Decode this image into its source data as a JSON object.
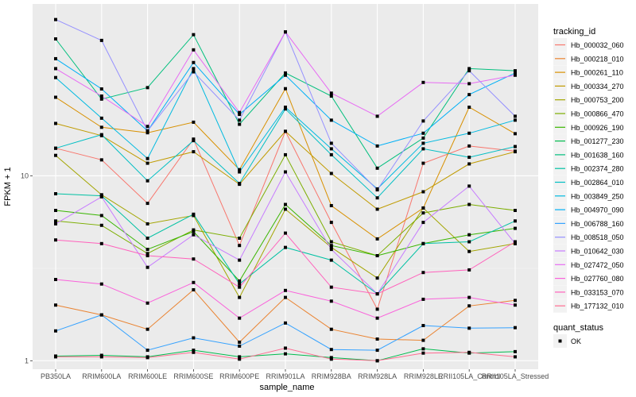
{
  "chart_data": {
    "type": "line",
    "title": "",
    "xlabel": "sample_name",
    "ylabel": "FPKM + 1",
    "yscale": "log10",
    "ylim": [
      0.9,
      85
    ],
    "yticks": [
      1,
      10
    ],
    "ytick_labels": [
      "1",
      "10"
    ],
    "grid": true,
    "legend_position": "right",
    "categories": [
      "PB350LA",
      "RRIM600LA",
      "RRIM600LE",
      "RRIM600SE",
      "RRIM600PE",
      "RRIM901LA",
      "RRIM928BA",
      "RRIM928LA",
      "RRIM928LE",
      "RRII105LA_Control",
      "RRII105LA_Stressed"
    ],
    "color_legend_title": "tracking_id",
    "shape_legend_title": "quant_status",
    "shape_legend_entries": [
      {
        "label": "OK",
        "shape": "square"
      }
    ],
    "series": [
      {
        "name": "Hb_000032_060",
        "color": "#F8766D",
        "values": [
          14.1,
          12.2,
          7.1,
          15.8,
          4.2,
          17.4,
          5.6,
          1.9,
          11.7,
          14.5,
          13.6
        ]
      },
      {
        "name": "Hb_000218_010",
        "color": "#EA8331",
        "values": [
          2.0,
          1.77,
          1.48,
          2.42,
          1.26,
          2.2,
          1.48,
          1.31,
          1.29,
          1.98,
          2.12
        ]
      },
      {
        "name": "Hb_000261_110",
        "color": "#D89000",
        "values": [
          26.6,
          18.3,
          17.1,
          19.5,
          10.8,
          29.6,
          6.9,
          4.56,
          6.7,
          23.5,
          16.9
        ]
      },
      {
        "name": "Hb_000334_270",
        "color": "#C09B00",
        "values": [
          19.2,
          16.5,
          11.7,
          13.5,
          9.0,
          17.4,
          10.3,
          6.6,
          8.2,
          11.6,
          13.5
        ]
      },
      {
        "name": "Hb_000753_200",
        "color": "#A3A500",
        "values": [
          12.9,
          7.9,
          5.5,
          6.1,
          2.2,
          6.6,
          4.1,
          2.8,
          6.7,
          3.9,
          4.3
        ]
      },
      {
        "name": "Hb_000866_470",
        "color": "#7CAE00",
        "values": [
          5.7,
          5.4,
          3.8,
          5.1,
          4.6,
          13.0,
          4.4,
          3.7,
          6.3,
          7.0,
          6.5
        ]
      },
      {
        "name": "Hb_000926_190",
        "color": "#39B600",
        "values": [
          6.5,
          6.1,
          4.0,
          5.0,
          2.7,
          7.0,
          4.2,
          3.7,
          4.3,
          4.8,
          5.2
        ]
      },
      {
        "name": "Hb_001277_230",
        "color": "#00BB4E",
        "values": [
          1.06,
          1.07,
          1.05,
          1.14,
          1.05,
          1.09,
          1.04,
          1.0,
          1.16,
          1.1,
          1.12
        ]
      },
      {
        "name": "Hb_001638_160",
        "color": "#00BF7D",
        "values": [
          55.0,
          26.0,
          30.0,
          58.0,
          19.0,
          36.0,
          27.0,
          11.0,
          16.0,
          38.0,
          37.0
        ]
      },
      {
        "name": "Hb_002374_280",
        "color": "#00C1A3",
        "values": [
          8.0,
          7.8,
          4.6,
          6.2,
          2.6,
          4.1,
          3.5,
          2.3,
          4.3,
          4.4,
          5.7
        ]
      },
      {
        "name": "Hb_002864_010",
        "color": "#00BFC4",
        "values": [
          14.1,
          16.7,
          9.4,
          15.5,
          9.1,
          23.0,
          13.0,
          7.6,
          14.0,
          12.6,
          14.4
        ]
      },
      {
        "name": "Hb_003849_250",
        "color": "#00BAE0",
        "values": [
          34.0,
          20.5,
          12.4,
          38.0,
          10.5,
          23.5,
          14.0,
          8.5,
          15.0,
          17.0,
          20.0
        ]
      },
      {
        "name": "Hb_004970_090",
        "color": "#00B0F6",
        "values": [
          43.0,
          29.5,
          17.5,
          41.0,
          21.5,
          35.0,
          20.0,
          14.5,
          17.0,
          27.5,
          36.0
        ]
      },
      {
        "name": "Hb_006788_160",
        "color": "#35A2FF",
        "values": [
          1.45,
          1.77,
          1.14,
          1.33,
          1.2,
          1.6,
          1.15,
          1.14,
          1.55,
          1.5,
          1.51
        ]
      },
      {
        "name": "Hb_008518_050",
        "color": "#9590FF",
        "values": [
          70.0,
          54.0,
          17.5,
          36.5,
          20.0,
          60.0,
          15.0,
          8.4,
          19.8,
          37.0,
          21.0
        ]
      },
      {
        "name": "Hb_010642_030",
        "color": "#C77CFF",
        "values": [
          5.5,
          7.7,
          3.2,
          4.8,
          3.5,
          10.5,
          4.0,
          2.3,
          5.6,
          8.8,
          4.3
        ]
      },
      {
        "name": "Hb_027472_050",
        "color": "#E76BF3",
        "values": [
          38.0,
          27.0,
          18.5,
          48.0,
          22.0,
          60.0,
          28.0,
          21.0,
          32.0,
          31.5,
          35.0
        ]
      },
      {
        "name": "Hb_027760_080",
        "color": "#FA62DB",
        "values": [
          2.75,
          2.6,
          2.05,
          2.65,
          1.7,
          2.4,
          2.1,
          1.7,
          2.15,
          2.2,
          2.0
        ]
      },
      {
        "name": "Hb_033153_070",
        "color": "#FF62BC",
        "values": [
          4.5,
          4.3,
          3.7,
          3.55,
          2.5,
          4.9,
          2.5,
          2.3,
          3.0,
          3.1,
          4.4
        ]
      },
      {
        "name": "Hb_177132_010",
        "color": "#FF6C91",
        "values": [
          1.05,
          1.05,
          1.04,
          1.11,
          1.02,
          1.17,
          1.02,
          1.0,
          1.1,
          1.11,
          1.05
        ]
      }
    ]
  }
}
